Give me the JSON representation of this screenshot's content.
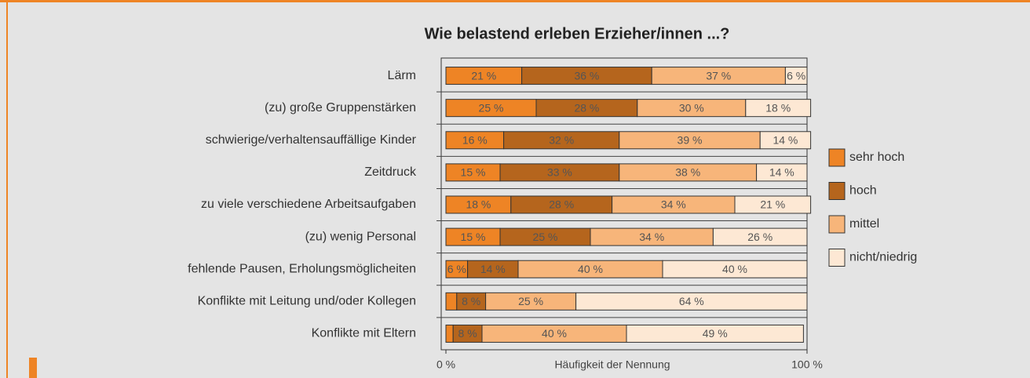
{
  "chart_data": {
    "type": "stacked_barh",
    "title": "Wie belastend erleben Erzieher/innen ...?",
    "xlabel": "Häufigkeit der Nennung",
    "categories": [
      "Lärm",
      "(zu) große Gruppenstärken",
      "schwierige/verhaltensauffällige Kinder",
      "Zeitdruck",
      "zu viele verschiedene Arbeitsaufgaben",
      "(zu) wenig Personal",
      "fehlende Pausen, Erholungsmöglicheiten",
      "Konflikte mit Leitung und/oder Kollegen",
      "Konflikte mit Eltern"
    ],
    "series": [
      {
        "name": "sehr hoch",
        "color": "#ee8425",
        "values": [
          21,
          25,
          16,
          15,
          18,
          15,
          6,
          3,
          2
        ],
        "value_labels": [
          "21 %",
          "25 %",
          "16 %",
          "15 %",
          "18 %",
          "15 %",
          "6 %",
          null,
          null
        ]
      },
      {
        "name": "hoch",
        "color": "#b5651d",
        "values": [
          36,
          28,
          32,
          33,
          28,
          25,
          14,
          8,
          8
        ],
        "value_labels": [
          "36 %",
          "28 %",
          "32 %",
          "33 %",
          "28 %",
          "25 %",
          "14 %",
          "8 %",
          "8 %"
        ]
      },
      {
        "name": "mittel",
        "color": "#f7b57a",
        "values": [
          37,
          30,
          39,
          38,
          34,
          34,
          40,
          25,
          40
        ],
        "value_labels": [
          "37 %",
          "30 %",
          "39 %",
          "38 %",
          "34 %",
          "34 %",
          "40 %",
          "25 %",
          "40 %"
        ]
      },
      {
        "name": "nicht/niedrig",
        "color": "#fde8d4",
        "values": [
          6,
          18,
          14,
          14,
          21,
          26,
          40,
          64,
          49
        ],
        "value_labels": [
          "6 %",
          "18 %",
          "14 %",
          "14 %",
          "21 %",
          "26 %",
          "40 %",
          "64 %",
          "49 %"
        ]
      }
    ],
    "xlim": [
      0,
      100
    ],
    "xticks": [
      {
        "value": 0,
        "label": "0 %"
      },
      {
        "value": 100,
        "label": "100 %"
      }
    ],
    "legend": "right"
  }
}
